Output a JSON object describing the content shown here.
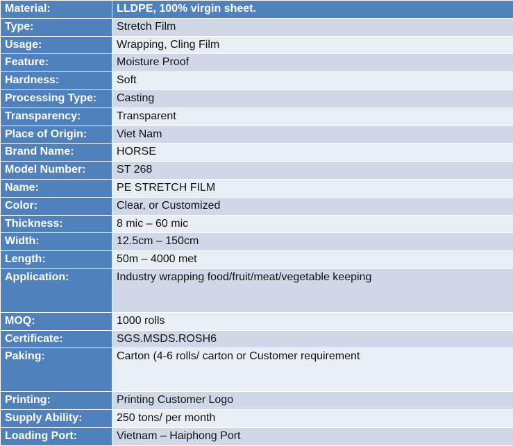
{
  "rows": [
    {
      "label": "Material:",
      "value": "LLDPE, 100% virgin sheet.",
      "tall": false
    },
    {
      "label": "Type:",
      "value": "Stretch Film",
      "tall": false
    },
    {
      "label": "Usage:",
      "value": "Wrapping, Cling Film",
      "tall": false
    },
    {
      "label": "Feature:",
      "value": "Moisture Proof",
      "tall": false
    },
    {
      "label": "Hardness:",
      "value": "Soft",
      "tall": false
    },
    {
      "label": "Processing Type:",
      "value": "Casting",
      "tall": false
    },
    {
      "label": "Transparency:",
      "value": "Transparent",
      "tall": false
    },
    {
      "label": "Place of Origin:",
      "value": "Viet Nam",
      "tall": false
    },
    {
      "label": "Brand Name:",
      "value": "HORSE",
      "tall": false
    },
    {
      "label": "Model Number:",
      "value": "ST 268",
      "tall": false
    },
    {
      "label": "Name:",
      "value": "PE STRETCH FILM",
      "tall": false
    },
    {
      "label": "Color:",
      "value": "Clear, or Customized",
      "tall": false
    },
    {
      "label": "Thickness:",
      "value": "8 mic – 60 mic",
      "tall": false
    },
    {
      "label": "Width:",
      "value": "12.5cm – 150cm",
      "tall": false
    },
    {
      "label": "Length:",
      "value": "50m – 4000 met",
      "tall": false
    },
    {
      "label": "Application:",
      "value": "Industry wrapping food/fruit/meat/vegetable keeping",
      "tall": true
    },
    {
      "label": "MOQ:",
      "value": "1000 rolls",
      "tall": false
    },
    {
      "label": "Certificate:",
      "value": "SGS.MSDS.ROSH6",
      "tall": false
    },
    {
      "label": "Paking:",
      "value": "Carton (4-6 rolls/ carton or Customer requirement",
      "tall": true
    },
    {
      "label": "Printing:",
      "value": "Printing Customer Logo",
      "tall": false
    },
    {
      "label": "Supply Ability:",
      "value": "250 tons/ per month",
      "tall": false
    },
    {
      "label": "Loading Port:",
      "value": "Vietnam – Haiphong Port",
      "tall": false
    }
  ]
}
